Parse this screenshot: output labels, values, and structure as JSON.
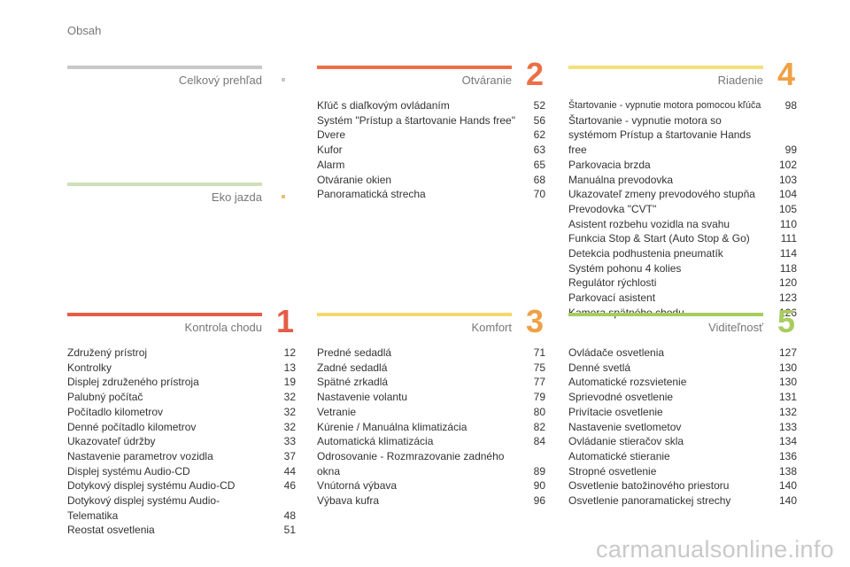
{
  "header": {
    "title": "Obsah"
  },
  "colors": {
    "gray": "#c8c8c8",
    "green": "#cfe0b8",
    "red": "#e45d45",
    "orange": "#f0a045",
    "lime": "#a8cd5f",
    "yellow": "#f3e07a",
    "orange_bar": "#ea7145"
  },
  "sections": {
    "overview": {
      "title": "Celkový prehľad"
    },
    "eco": {
      "title": "Eko jazda"
    },
    "s1": {
      "title": "Kontrola chodu",
      "num": "1",
      "items": [
        {
          "label": "Združený prístroj",
          "page": "12"
        },
        {
          "label": "Kontrolky",
          "page": "13"
        },
        {
          "label": "Displej združeného prístroja",
          "page": "19"
        },
        {
          "label": "Palubný počítač",
          "page": "32"
        },
        {
          "label": "Počítadlo kilometrov",
          "page": "32"
        },
        {
          "label": "Denné počítadlo kilometrov",
          "page": "32"
        },
        {
          "label": "Ukazovateľ údržby",
          "page": "33"
        },
        {
          "label": "Nastavenie parametrov vozidla",
          "page": "37"
        },
        {
          "label": "Displej systému Audio-CD",
          "page": "44"
        },
        {
          "label": "Dotykový displej systému Audio-CD",
          "page": "46"
        },
        {
          "label": "Dotykový displej systému Audio-Telematika",
          "page": "48"
        },
        {
          "label": "Reostat osvetlenia",
          "page": "51"
        }
      ]
    },
    "s2": {
      "title": "Otváranie",
      "num": "2",
      "items": [
        {
          "label": "Kľúč s diaľkovým ovládaním",
          "page": "52"
        },
        {
          "label": "Systém \"Prístup a štartovanie Hands free\"",
          "page": "56"
        },
        {
          "label": "Dvere",
          "page": "62"
        },
        {
          "label": "Kufor",
          "page": "63"
        },
        {
          "label": "Alarm",
          "page": "65"
        },
        {
          "label": "Otváranie okien",
          "page": "68"
        },
        {
          "label": "Panoramatická strecha",
          "page": "70"
        }
      ]
    },
    "s3": {
      "title": "Komfort",
      "num": "3",
      "items": [
        {
          "label": "Predné sedadlá",
          "page": "71"
        },
        {
          "label": "Zadné sedadlá",
          "page": "75"
        },
        {
          "label": "Spätné zrkadlá",
          "page": "77"
        },
        {
          "label": "Nastavenie volantu",
          "page": "79"
        },
        {
          "label": "Vetranie",
          "page": "80"
        },
        {
          "label": "Kúrenie / Manuálna klimatizácia",
          "page": "82"
        },
        {
          "label": "Automatická klimatizácia",
          "page": "84"
        },
        {
          "label": "Odrosovanie - Rozmrazovanie zadného okna",
          "page": "89"
        },
        {
          "label": "Vnútorná výbava",
          "page": "90"
        },
        {
          "label": "Výbava kufra",
          "page": "96"
        }
      ]
    },
    "s4": {
      "title": "Riadenie",
      "num": "4",
      "items": [
        {
          "label": "Štartovanie - vypnutie motora pomocou kľúča",
          "page": "98"
        },
        {
          "label": "Štartovanie - vypnutie motora so systémom Prístup a štartovanie Hands free",
          "page": "99"
        },
        {
          "label": "Parkovacia brzda",
          "page": "102"
        },
        {
          "label": "Manuálna prevodovka",
          "page": "103"
        },
        {
          "label": "Ukazovateľ zmeny prevodového stupňa",
          "page": "104"
        },
        {
          "label": "Prevodovka \"CVT\"",
          "page": "105"
        },
        {
          "label": "Asistent rozbehu vozidla na svahu",
          "page": "110"
        },
        {
          "label": "Funkcia Stop & Start (Auto Stop & Go)",
          "page": "111"
        },
        {
          "label": "Detekcia podhustenia pneumatík",
          "page": "114"
        },
        {
          "label": "Systém pohonu 4 kolies",
          "page": "118"
        },
        {
          "label": "Regulátor rýchlosti",
          "page": "120"
        },
        {
          "label": "Parkovací asistent",
          "page": "123"
        },
        {
          "label": "Kamera spätného chodu",
          "page": "126"
        }
      ]
    },
    "s5": {
      "title": "Viditeľnosť",
      "num": "5",
      "items": [
        {
          "label": "Ovládače osvetlenia",
          "page": "127"
        },
        {
          "label": "Denné svetlá",
          "page": "130"
        },
        {
          "label": "Automatické rozsvietenie",
          "page": "130"
        },
        {
          "label": "Sprievodné osvetlenie",
          "page": "131"
        },
        {
          "label": "Privítacie osvetlenie",
          "page": "132"
        },
        {
          "label": "Nastavenie svetlometov",
          "page": "133"
        },
        {
          "label": "Ovládanie stieračov skla",
          "page": "134"
        },
        {
          "label": "Automatické stieranie",
          "page": "136"
        },
        {
          "label": "Stropné osvetlenie",
          "page": "138"
        },
        {
          "label": "Osvetlenie batožinového priestoru",
          "page": "140"
        },
        {
          "label": "Osvetlenie panoramatickej strechy",
          "page": "140"
        }
      ]
    }
  },
  "watermark": "carmanualsonline.info"
}
